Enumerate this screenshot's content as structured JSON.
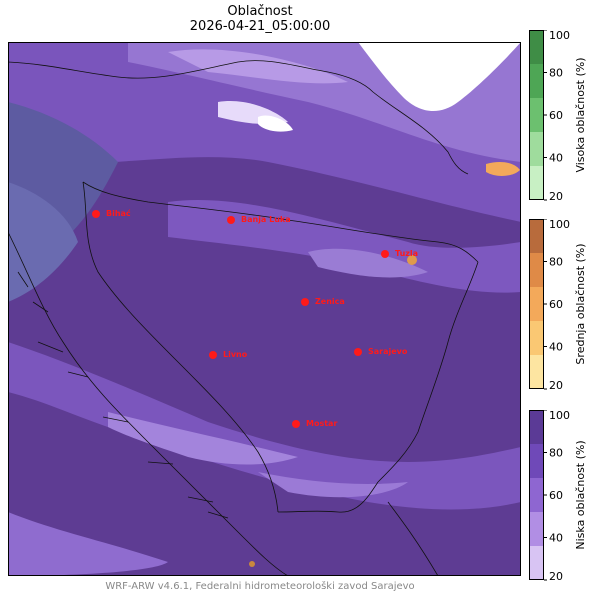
{
  "title": "Oblačnost",
  "timestamp": "2026-04-21_05:00:00",
  "footer": "WRF-ARW v4.6.1, Federalni hidrometeorološki zavod Sarajevo",
  "cities": [
    {
      "name": "Bihać"
    },
    {
      "name": "Banja Luka"
    },
    {
      "name": "Tuzla"
    },
    {
      "name": "Zenica"
    },
    {
      "name": "Livno"
    },
    {
      "name": "Sarajevo"
    },
    {
      "name": "Mostar"
    }
  ],
  "colorbars": [
    {
      "label": "Visoka oblačnost (%)",
      "ticks": [
        "100",
        "80",
        "60",
        "40",
        "20"
      ],
      "colors": [
        "#3f8d46",
        "#4ea655",
        "#6cc06f",
        "#9fdc9d",
        "#c8f0c4"
      ]
    },
    {
      "label": "Srednja oblačnost (%)",
      "ticks": [
        "100",
        "80",
        "60",
        "40",
        "20"
      ],
      "colors": [
        "#b86b3c",
        "#df8a47",
        "#f3a95a",
        "#fac873",
        "#fde5a1"
      ]
    },
    {
      "label": "Niska oblačnost (%)",
      "ticks": [
        "100",
        "80",
        "60",
        "40",
        "20"
      ],
      "colors": [
        "#5b3a96",
        "#6f49b8",
        "#8e66d1",
        "#b18ee4",
        "#d8c4f3"
      ]
    }
  ]
}
